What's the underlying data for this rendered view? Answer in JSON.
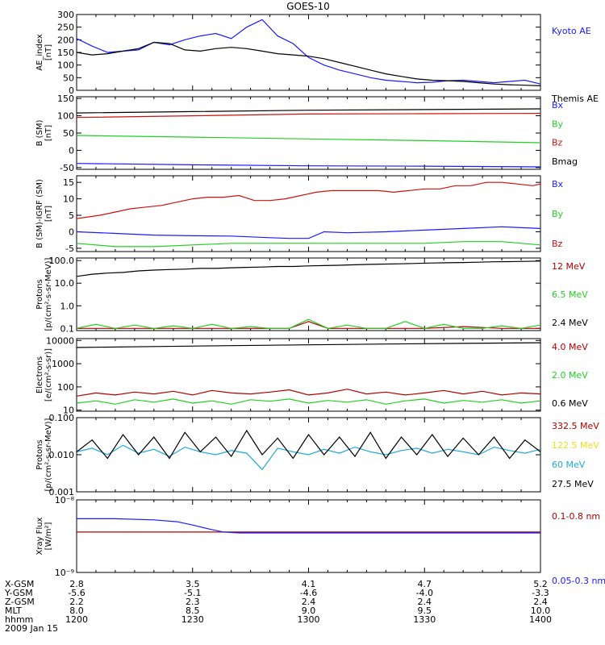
{
  "title": "GOES-10",
  "colors": {
    "blue": "#1a1aff",
    "green": "#20d020",
    "red": "#cc1111",
    "black": "#000000",
    "cyan": "#1ea9d8",
    "yellow": "#e8e020",
    "darkred": "#b00000"
  },
  "chart_data": [
    {
      "type": "line",
      "ylabel": [
        "AE_index",
        "[nT]"
      ],
      "ylim": [
        0,
        300
      ],
      "yticks": [
        0,
        50,
        100,
        150,
        200,
        250,
        300
      ],
      "ytick_labels": [
        "0",
        "50",
        "100",
        "150",
        "200",
        "250",
        "300"
      ],
      "xlim": [
        0,
        120
      ],
      "series": [
        {
          "name": "Kyoto AE",
          "color": "#1a1aff",
          "label_dy": 0,
          "x": [
            0,
            4,
            8,
            12,
            16,
            20,
            24,
            28,
            32,
            36,
            40,
            44,
            48,
            52,
            56,
            60,
            64,
            68,
            72,
            76,
            80,
            84,
            88,
            92,
            96,
            100,
            104,
            108,
            112,
            116,
            120
          ],
          "values": [
            205,
            175,
            150,
            155,
            160,
            190,
            180,
            200,
            215,
            225,
            205,
            250,
            280,
            215,
            185,
            130,
            100,
            80,
            65,
            50,
            40,
            35,
            30,
            32,
            38,
            40,
            35,
            30,
            35,
            40,
            25
          ]
        },
        {
          "name": "Themis AE",
          "color": "#000000",
          "label_dy": 0,
          "x": [
            0,
            4,
            8,
            12,
            16,
            20,
            24,
            28,
            32,
            36,
            40,
            44,
            48,
            52,
            56,
            60,
            64,
            68,
            72,
            76,
            80,
            84,
            88,
            92,
            96,
            100,
            104,
            108,
            112,
            116,
            120
          ],
          "values": [
            150,
            140,
            145,
            155,
            165,
            190,
            185,
            160,
            155,
            165,
            170,
            165,
            155,
            145,
            140,
            135,
            125,
            110,
            95,
            80,
            65,
            55,
            45,
            40,
            38,
            35,
            30,
            25,
            22,
            20,
            18
          ]
        }
      ]
    },
    {
      "type": "line",
      "ylabel": [
        "B (SM)",
        "[nT]"
      ],
      "ylim": [
        -55,
        155
      ],
      "yticks": [
        -50,
        0,
        50,
        100,
        150
      ],
      "ytick_labels": [
        "-50",
        "0",
        "50",
        "100",
        "150"
      ],
      "xlim": [
        0,
        120
      ],
      "series": [
        {
          "name": "Bx",
          "color": "#1a1aff",
          "x": [
            0,
            30,
            60,
            90,
            120
          ],
          "values": [
            -38,
            -42,
            -45,
            -46,
            -48
          ]
        },
        {
          "name": "By",
          "color": "#20d020",
          "x": [
            0,
            30,
            60,
            90,
            120
          ],
          "values": [
            43,
            38,
            33,
            28,
            22
          ]
        },
        {
          "name": "Bz",
          "color": "#cc1111",
          "x": [
            0,
            30,
            60,
            90,
            120
          ],
          "values": [
            95,
            100,
            105,
            106,
            107
          ]
        },
        {
          "name": "Bmag",
          "color": "#000000",
          "x": [
            0,
            30,
            60,
            90,
            120
          ],
          "values": [
            108,
            112,
            116,
            118,
            120
          ]
        }
      ]
    },
    {
      "type": "line",
      "ylabel": [
        "B (SM)-IGRF (SM)",
        "[nT]"
      ],
      "ylim": [
        -6,
        17
      ],
      "yticks": [
        -5,
        0,
        5,
        10,
        15
      ],
      "ytick_labels": [
        "-5",
        "0",
        "5",
        "10",
        "15"
      ],
      "xlim": [
        0,
        120
      ],
      "series": [
        {
          "name": "Bx",
          "color": "#1a1aff",
          "x": [
            0,
            10,
            20,
            30,
            40,
            50,
            55,
            60,
            64,
            70,
            80,
            90,
            100,
            110,
            120
          ],
          "values": [
            0,
            -0.5,
            -1,
            -1.2,
            -1.3,
            -1.8,
            -2,
            -2,
            0,
            -0.3,
            0,
            0.5,
            1,
            1.5,
            1
          ]
        },
        {
          "name": "By",
          "color": "#20d020",
          "x": [
            0,
            10,
            20,
            30,
            40,
            50,
            60,
            70,
            80,
            90,
            100,
            110,
            120
          ],
          "values": [
            -3.5,
            -4.5,
            -4.5,
            -4,
            -3.5,
            -3.5,
            -3.5,
            -3.5,
            -3.5,
            -3.5,
            -3,
            -3,
            -4
          ]
        },
        {
          "name": "Bz",
          "color": "#cc1111",
          "x": [
            0,
            6,
            10,
            14,
            18,
            22,
            26,
            30,
            34,
            38,
            42,
            46,
            50,
            54,
            58,
            62,
            66,
            70,
            74,
            78,
            82,
            86,
            90,
            94,
            98,
            102,
            106,
            110,
            114,
            118,
            120
          ],
          "values": [
            4,
            5,
            6,
            7,
            7.5,
            8,
            9,
            10,
            10.5,
            10.5,
            11,
            9.5,
            9.5,
            10,
            11,
            12,
            12.5,
            12.5,
            12.5,
            12.5,
            12,
            12.5,
            13,
            13,
            14,
            14,
            15,
            15,
            14.5,
            14,
            14.5
          ]
        }
      ]
    },
    {
      "type": "line",
      "ylog": true,
      "ylabel": [
        "Protons",
        "[p/(cm²-s-sr-MeV)]"
      ],
      "ylim": [
        0.08,
        130
      ],
      "yticks": [
        0.1,
        1,
        10,
        100
      ],
      "ytick_labels": [
        "0.1",
        "1.0",
        "10.0",
        "100.0"
      ],
      "xlim": [
        0,
        120
      ],
      "series": [
        {
          "name": "12 MeV",
          "color": "#b00000",
          "x": [
            0,
            30,
            55,
            60,
            65,
            90,
            100,
            110,
            120
          ],
          "values": [
            0.1,
            0.1,
            0.1,
            0.2,
            0.1,
            0.1,
            0.12,
            0.1,
            0.1
          ]
        },
        {
          "name": "6.5 MeV",
          "color": "#20d020",
          "x": [
            0,
            5,
            10,
            15,
            20,
            25,
            30,
            35,
            40,
            45,
            50,
            55,
            60,
            65,
            70,
            75,
            80,
            85,
            90,
            95,
            100,
            105,
            110,
            115,
            120
          ],
          "values": [
            0.1,
            0.15,
            0.1,
            0.14,
            0.1,
            0.13,
            0.1,
            0.15,
            0.1,
            0.12,
            0.1,
            0.1,
            0.25,
            0.1,
            0.14,
            0.1,
            0.1,
            0.2,
            0.1,
            0.15,
            0.1,
            0.1,
            0.13,
            0.1,
            0.14
          ]
        },
        {
          "name": "2.4 MeV",
          "color": "#000000",
          "x": [
            0,
            4,
            8,
            12,
            16,
            20,
            24,
            28,
            32,
            36,
            40,
            44,
            48,
            52,
            56,
            60,
            64,
            68,
            72,
            76,
            80,
            84,
            88,
            92,
            96,
            100,
            104,
            108,
            112,
            116,
            120
          ],
          "values": [
            20,
            25,
            28,
            30,
            35,
            38,
            40,
            42,
            45,
            45,
            48,
            50,
            52,
            55,
            55,
            58,
            60,
            62,
            65,
            68,
            70,
            72,
            75,
            78,
            80,
            82,
            85,
            88,
            90,
            92,
            95
          ]
        }
      ]
    },
    {
      "type": "line",
      "ylog": true,
      "ylabel": [
        "Electrons",
        "[e/(cm²-s-sr)]"
      ],
      "ylim": [
        9,
        12000
      ],
      "yticks": [
        10,
        100,
        1000,
        10000
      ],
      "ytick_labels": [
        "10",
        "100",
        "1000",
        "10000"
      ],
      "xlim": [
        0,
        120
      ],
      "series": [
        {
          "name": "4.0 MeV",
          "color": "#b00000",
          "x": [
            0,
            5,
            10,
            15,
            20,
            25,
            30,
            35,
            40,
            45,
            50,
            55,
            60,
            65,
            70,
            75,
            80,
            85,
            90,
            95,
            100,
            105,
            110,
            115,
            120
          ],
          "values": [
            40,
            55,
            45,
            60,
            50,
            65,
            45,
            70,
            55,
            50,
            60,
            75,
            45,
            55,
            80,
            50,
            60,
            45,
            55,
            70,
            50,
            65,
            45,
            55,
            50
          ]
        },
        {
          "name": "2.0 MeV",
          "color": "#20d020",
          "x": [
            0,
            5,
            10,
            15,
            20,
            25,
            30,
            35,
            40,
            45,
            50,
            55,
            60,
            65,
            70,
            75,
            80,
            85,
            90,
            95,
            100,
            105,
            110,
            115,
            120
          ],
          "values": [
            20,
            25,
            18,
            28,
            22,
            30,
            20,
            25,
            18,
            28,
            24,
            30,
            20,
            26,
            22,
            28,
            18,
            25,
            30,
            20,
            26,
            22,
            28,
            20,
            25
          ]
        },
        {
          "name": "0.6 MeV",
          "color": "#000000",
          "x": [
            0,
            20,
            40,
            60,
            80,
            100,
            120
          ],
          "values": [
            5000,
            5500,
            6000,
            6500,
            7000,
            7500,
            8000
          ]
        }
      ]
    },
    {
      "type": "line",
      "ylog": true,
      "ylabel": [
        "Protons",
        "[p/(cm²-s-sr-MeV)]"
      ],
      "ylim": [
        0.001,
        0.1
      ],
      "yticks": [
        0.001,
        0.01,
        0.1
      ],
      "ytick_labels": [
        "0.001",
        "0.010",
        "0.100"
      ],
      "xlim": [
        0,
        120
      ],
      "series": [
        {
          "name": "332.5 MeV",
          "color": "#b00000",
          "x": [],
          "values": []
        },
        {
          "name": "122.5 MeV",
          "color": "#e8e020",
          "x": [],
          "values": []
        },
        {
          "name": "60 MeV",
          "color": "#1ea9d8",
          "x": [
            0,
            4,
            8,
            12,
            16,
            20,
            24,
            28,
            32,
            36,
            40,
            44,
            48,
            52,
            56,
            60,
            64,
            68,
            72,
            76,
            80,
            84,
            88,
            92,
            96,
            100,
            104,
            108,
            112,
            116,
            120
          ],
          "values": [
            0.012,
            0.015,
            0.01,
            0.018,
            0.011,
            0.014,
            0.009,
            0.016,
            0.012,
            0.01,
            0.013,
            0.011,
            0.004,
            0.015,
            0.012,
            0.01,
            0.014,
            0.011,
            0.016,
            0.012,
            0.01,
            0.013,
            0.015,
            0.011,
            0.014,
            0.012,
            0.01,
            0.016,
            0.013,
            0.011,
            0.014
          ]
        },
        {
          "name": "27.5 MeV",
          "color": "#000000",
          "x": [
            0,
            4,
            8,
            12,
            16,
            20,
            24,
            28,
            32,
            36,
            40,
            44,
            48,
            52,
            56,
            60,
            64,
            68,
            72,
            76,
            80,
            84,
            88,
            92,
            96,
            100,
            104,
            108,
            112,
            116,
            120
          ],
          "values": [
            0.012,
            0.025,
            0.008,
            0.035,
            0.01,
            0.03,
            0.008,
            0.04,
            0.012,
            0.03,
            0.009,
            0.045,
            0.01,
            0.028,
            0.008,
            0.035,
            0.01,
            0.03,
            0.009,
            0.04,
            0.008,
            0.03,
            0.01,
            0.035,
            0.009,
            0.028,
            0.01,
            0.03,
            0.008,
            0.025,
            0.012
          ]
        }
      ]
    },
    {
      "type": "line",
      "ylog": true,
      "ylabel": [
        "Xray Flux",
        "[W/m²]"
      ],
      "ylim": [
        1e-09,
        1e-08
      ],
      "yticks": [
        1e-09,
        1e-08
      ],
      "ytick_labels": [
        "10⁻⁹",
        "10⁻⁸"
      ],
      "xlim": [
        0,
        120
      ],
      "series": [
        {
          "name": "0.1-0.8 nm",
          "color": "#b00000",
          "x": [
            0,
            120
          ],
          "values": [
            3.6e-09,
            3.6e-09
          ]
        },
        {
          "name": "0.05-0.3 nm",
          "color": "#1a1aff",
          "x": [
            0,
            10,
            20,
            26,
            30,
            34,
            38,
            42,
            46,
            120
          ],
          "values": [
            5.5e-09,
            5.5e-09,
            5.3e-09,
            5e-09,
            4.5e-09,
            4e-09,
            3.6e-09,
            3.5e-09,
            3.5e-09,
            3.5e-09
          ]
        }
      ]
    }
  ],
  "footer": {
    "row_labels": [
      "X-GSM",
      "Y-GSM",
      "Z-GSM",
      "MLT",
      "hhmm",
      "2009 Jan 15"
    ],
    "columns": [
      {
        "x": 0,
        "values": [
          "2.8",
          "-5.6",
          "2.2",
          "8.0",
          "1200"
        ]
      },
      {
        "x": 30,
        "values": [
          "3.5",
          "-5.1",
          "2.3",
          "8.5",
          "1230"
        ]
      },
      {
        "x": 60,
        "values": [
          "4.1",
          "-4.6",
          "2.4",
          "9.0",
          "1300"
        ]
      },
      {
        "x": 90,
        "values": [
          "4.7",
          "-4.0",
          "2.4",
          "9.5",
          "1330"
        ]
      },
      {
        "x": 120,
        "values": [
          "5.2",
          "-3.3",
          "2.4",
          "10.0",
          "1400"
        ]
      }
    ]
  }
}
